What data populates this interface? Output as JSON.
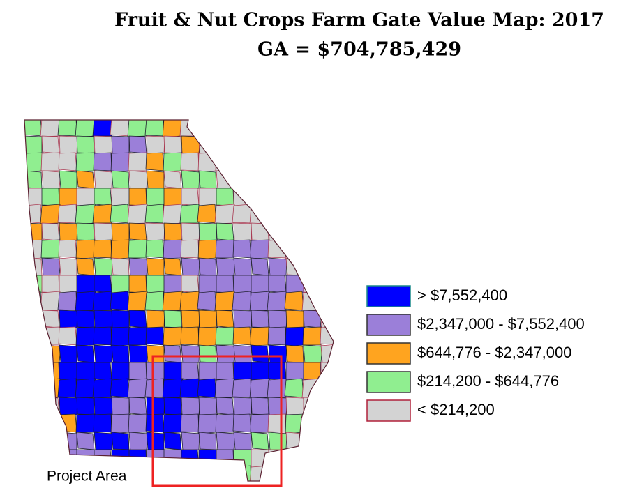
{
  "title": "Fruit & Nut Crops Farm Gate Value Map: 2017",
  "subtitle": "GA = $704,785,429",
  "legend": [
    {
      "label": "> $7,552,400",
      "color": "#0000ff"
    },
    {
      "label": "$2,347,000 - $7,552,400",
      "color": "#9b7fd9"
    },
    {
      "label": "$644,776 - $2,347,000",
      "color": "#ffa41f"
    },
    {
      "label": "$214,200 - $644,776",
      "color": "#90ee90"
    },
    {
      "label": "< $214,200",
      "color": "#d3d3d3"
    }
  ],
  "annotation": "Project Area"
}
